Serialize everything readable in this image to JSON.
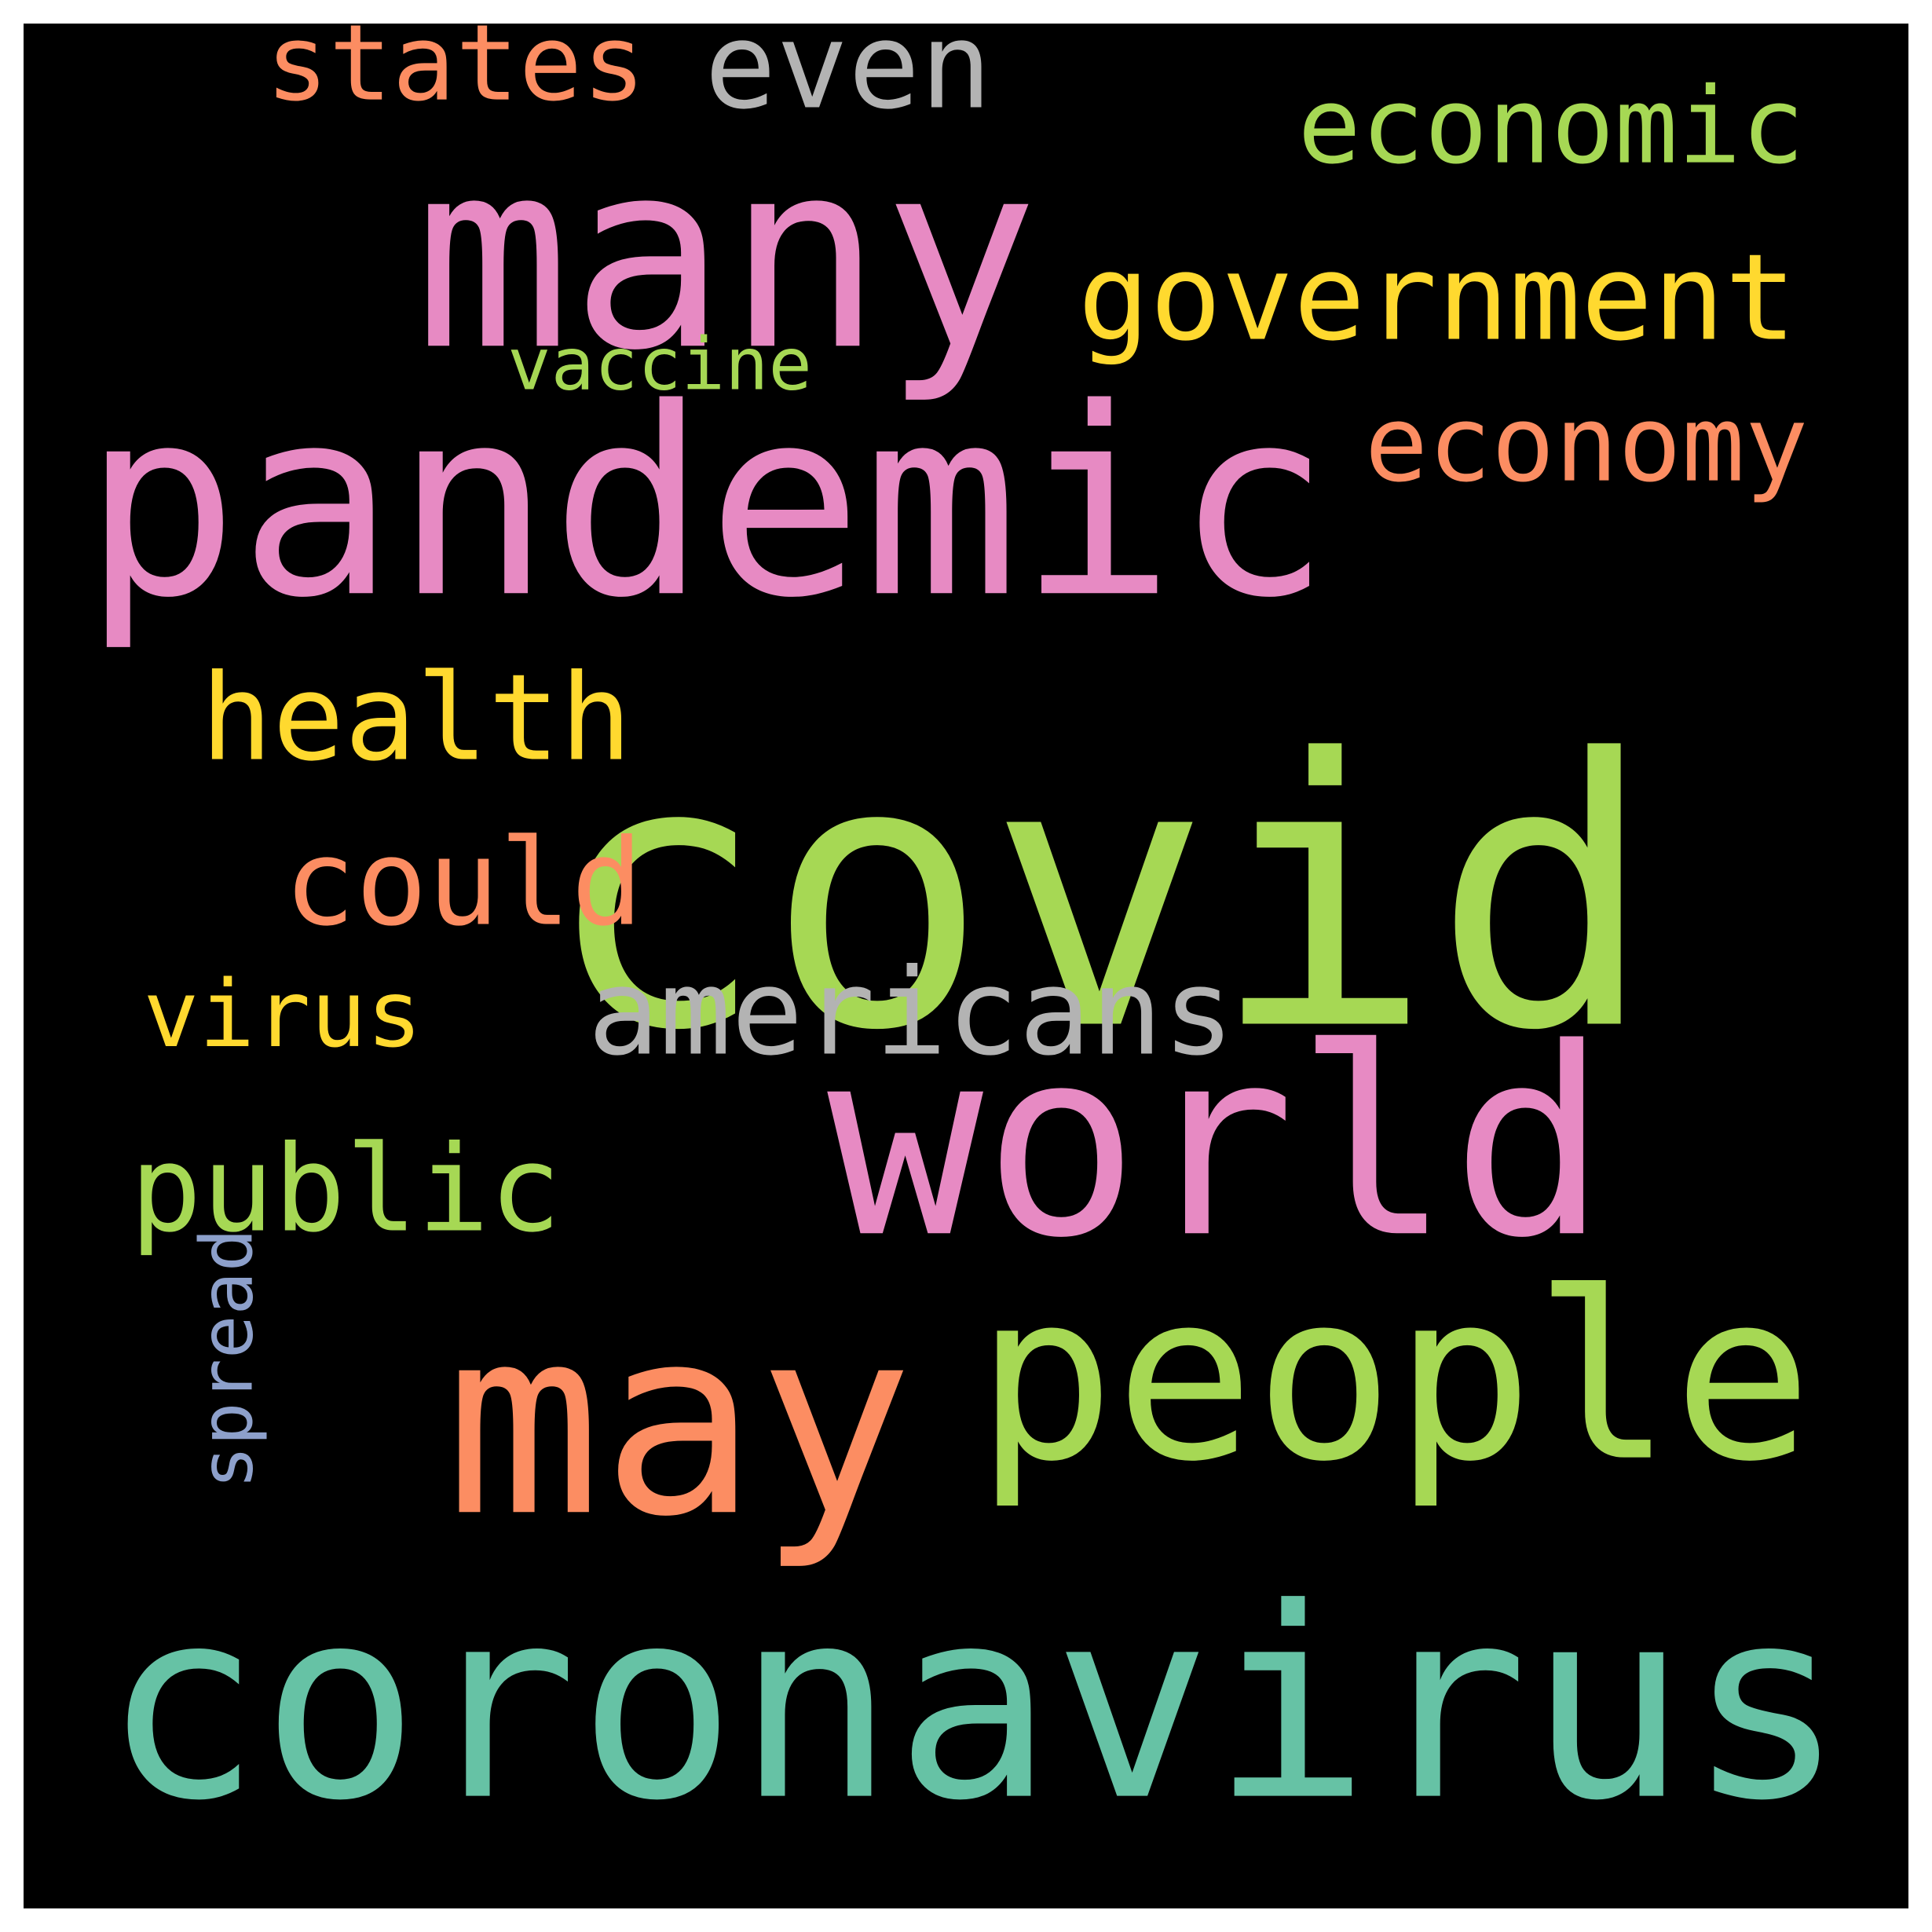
{
  "word_cloud": {
    "background_color": "#000000",
    "palette": [
      "#66c2a5",
      "#a6d854",
      "#e78ac3",
      "#fc8d62",
      "#ffd92f",
      "#b3b3b3",
      "#8da0cb"
    ],
    "words": [
      {
        "text": "covid",
        "color": "#a6d854",
        "orientation": "horizontal"
      },
      {
        "text": "coronavirus",
        "color": "#66c2a5",
        "orientation": "horizontal"
      },
      {
        "text": "pandemic",
        "color": "#e78ac3",
        "orientation": "horizontal"
      },
      {
        "text": "many",
        "color": "#e78ac3",
        "orientation": "horizontal"
      },
      {
        "text": "world",
        "color": "#e78ac3",
        "orientation": "horizontal"
      },
      {
        "text": "may",
        "color": "#fc8d62",
        "orientation": "horizontal"
      },
      {
        "text": "people",
        "color": "#a6d854",
        "orientation": "horizontal"
      },
      {
        "text": "government",
        "color": "#ffd92f",
        "orientation": "horizontal"
      },
      {
        "text": "economic",
        "color": "#a6d854",
        "orientation": "horizontal"
      },
      {
        "text": "economy",
        "color": "#fc8d62",
        "orientation": "horizontal"
      },
      {
        "text": "health",
        "color": "#ffd92f",
        "orientation": "horizontal"
      },
      {
        "text": "could",
        "color": "#fc8d62",
        "orientation": "horizontal"
      },
      {
        "text": "americans",
        "color": "#b3b3b3",
        "orientation": "horizontal"
      },
      {
        "text": "public",
        "color": "#a6d854",
        "orientation": "horizontal"
      },
      {
        "text": "states",
        "color": "#fc8d62",
        "orientation": "horizontal"
      },
      {
        "text": "even",
        "color": "#b3b3b3",
        "orientation": "horizontal"
      },
      {
        "text": "virus",
        "color": "#ffd92f",
        "orientation": "horizontal"
      },
      {
        "text": "vaccine",
        "color": "#a6d854",
        "orientation": "horizontal"
      },
      {
        "text": "spread",
        "color": "#8da0cb",
        "orientation": "vertical"
      }
    ]
  }
}
